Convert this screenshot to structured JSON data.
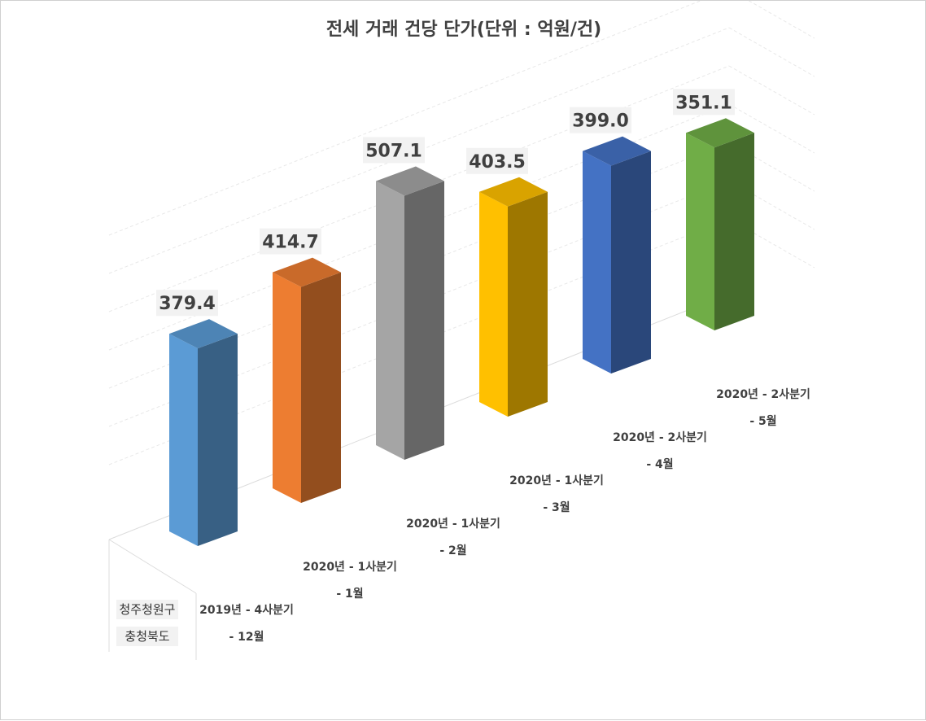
{
  "chart_data": {
    "type": "bar",
    "title": "전세 거래 건당 단가(단위 : 억원/건)",
    "region_labels": [
      "청주청원구",
      "충청북도"
    ],
    "categories": [
      [
        "2019년 - 4사분기",
        "- 12월"
      ],
      [
        "2020년 - 1사분기",
        "- 1월"
      ],
      [
        "2020년 - 1사분기",
        "- 2월"
      ],
      [
        "2020년 - 1사분기",
        "- 3월"
      ],
      [
        "2020년 - 2사분기",
        "- 4월"
      ],
      [
        "2020년 - 2사분기",
        "- 5월"
      ]
    ],
    "values": [
      379.4,
      414.7,
      507.1,
      403.5,
      399.0,
      351.1
    ],
    "data_labels": [
      "379.4",
      "414.7",
      "507.1",
      "403.5",
      "399.0",
      "351.1"
    ],
    "colors": [
      "#5B9BD5",
      "#ED7D31",
      "#A5A5A5",
      "#FFC000",
      "#4472C4",
      "#70AD47"
    ],
    "grid": true,
    "legend": "none"
  }
}
